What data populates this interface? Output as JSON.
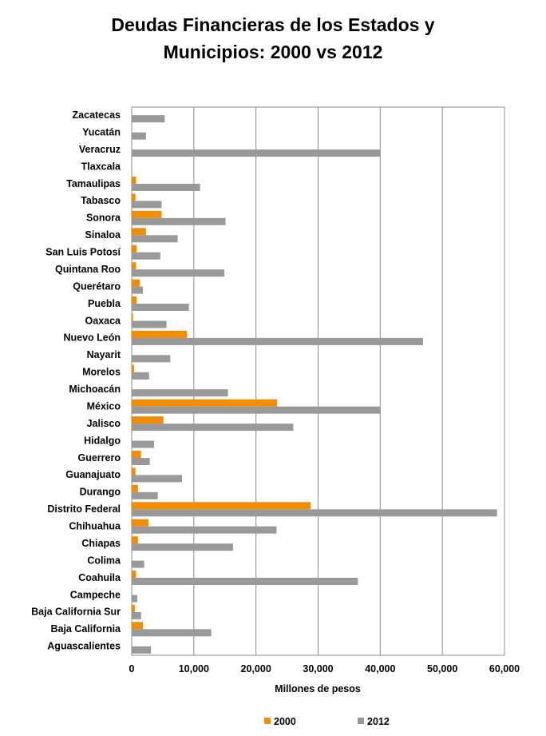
{
  "chart_data": {
    "type": "bar",
    "orientation": "horizontal",
    "title_line1": "Deudas Financieras de los Estados y",
    "title_line2": "Municipios: 2000 vs 2012",
    "xlabel": "Millones  de pesos",
    "ylabel": "",
    "xlim": [
      0,
      60000
    ],
    "xticks": [
      0,
      10000,
      20000,
      30000,
      40000,
      50000,
      60000
    ],
    "xtick_labels": [
      "0",
      "10,000",
      "20,000",
      "30,000",
      "40,000",
      "50,000",
      "60,000"
    ],
    "grid": "vertical",
    "legend_position": "bottom",
    "categories": [
      "Zacatecas",
      "Yucatán",
      "Veracruz",
      "Tlaxcala",
      "Tamaulipas",
      "Tabasco",
      "Sonora",
      "Sinaloa",
      "San Luis Potosí",
      "Quintana Roo",
      "Querétaro",
      "Puebla",
      "Oaxaca",
      "Nuevo León",
      "Nayarit",
      "Morelos",
      "Michoacán",
      "México",
      "Jalisco",
      "Hidalgo",
      "Guerrero",
      "Guanajuato",
      "Durango",
      "Distrito Federal",
      "Chihuahua",
      "Chiapas",
      "Colima",
      "Coahuila",
      "Campeche",
      "Baja California Sur",
      "Baja California",
      "Aguascalientes"
    ],
    "series": [
      {
        "name": "2000",
        "color": "#F28C00",
        "values": [
          0,
          0,
          0,
          0,
          700,
          600,
          4800,
          2300,
          800,
          700,
          1300,
          800,
          200,
          8900,
          0,
          400,
          0,
          23400,
          5100,
          0,
          1500,
          600,
          1000,
          28800,
          2700,
          1000,
          0,
          700,
          0,
          500,
          1800,
          0
        ]
      },
      {
        "name": "2012",
        "color": "#999999",
        "values": [
          5300,
          2300,
          40000,
          0,
          11000,
          4800,
          15100,
          7400,
          4600,
          14900,
          1800,
          9200,
          5600,
          46900,
          6200,
          2800,
          15500,
          40000,
          26000,
          3600,
          2900,
          8100,
          4200,
          58800,
          23300,
          16300,
          2000,
          36400,
          900,
          1500,
          12800,
          3100
        ]
      }
    ]
  }
}
